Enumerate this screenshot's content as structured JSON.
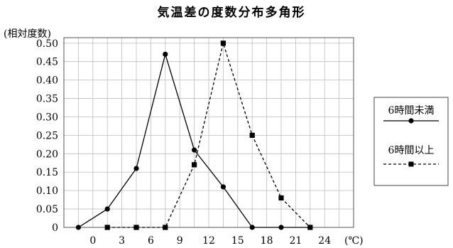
{
  "chart_data": {
    "type": "line",
    "title": "気温差の度数分布多角形",
    "ylabel": "(相対度数)",
    "xlabel": "(℃)",
    "xlim": [
      -3,
      27
    ],
    "ylim": [
      0,
      0.5
    ],
    "x_ticks": [
      0,
      3,
      6,
      9,
      12,
      15,
      18,
      21,
      24
    ],
    "y_ticks": [
      0,
      0.05,
      0.1,
      0.15,
      0.2,
      0.25,
      0.3,
      0.35,
      0.4,
      0.45,
      0.5
    ],
    "y_tick_labels": [
      "0",
      "0.05",
      "0.10",
      "0.15",
      "0.20",
      "0.25",
      "0.30",
      "0.35",
      "0.40",
      "0.45",
      "0.50"
    ],
    "grid": true,
    "legend_position": "right",
    "series": [
      {
        "name": "6時間未満",
        "line_style": "solid",
        "marker": "circle",
        "color": "#000000",
        "x": [
          -1.5,
          1.5,
          4.5,
          7.5,
          10.5,
          13.5,
          16.5,
          19.5,
          22.5
        ],
        "y": [
          0,
          0.05,
          0.16,
          0.47,
          0.21,
          0.11,
          0,
          0,
          0
        ]
      },
      {
        "name": "6時間以上",
        "line_style": "dashed",
        "marker": "square",
        "color": "#000000",
        "x": [
          1.5,
          4.5,
          7.5,
          10.5,
          13.5,
          16.5,
          19.5,
          22.5
        ],
        "y": [
          0,
          0,
          0,
          0.17,
          0.5,
          0.25,
          0.08,
          0
        ]
      }
    ]
  }
}
